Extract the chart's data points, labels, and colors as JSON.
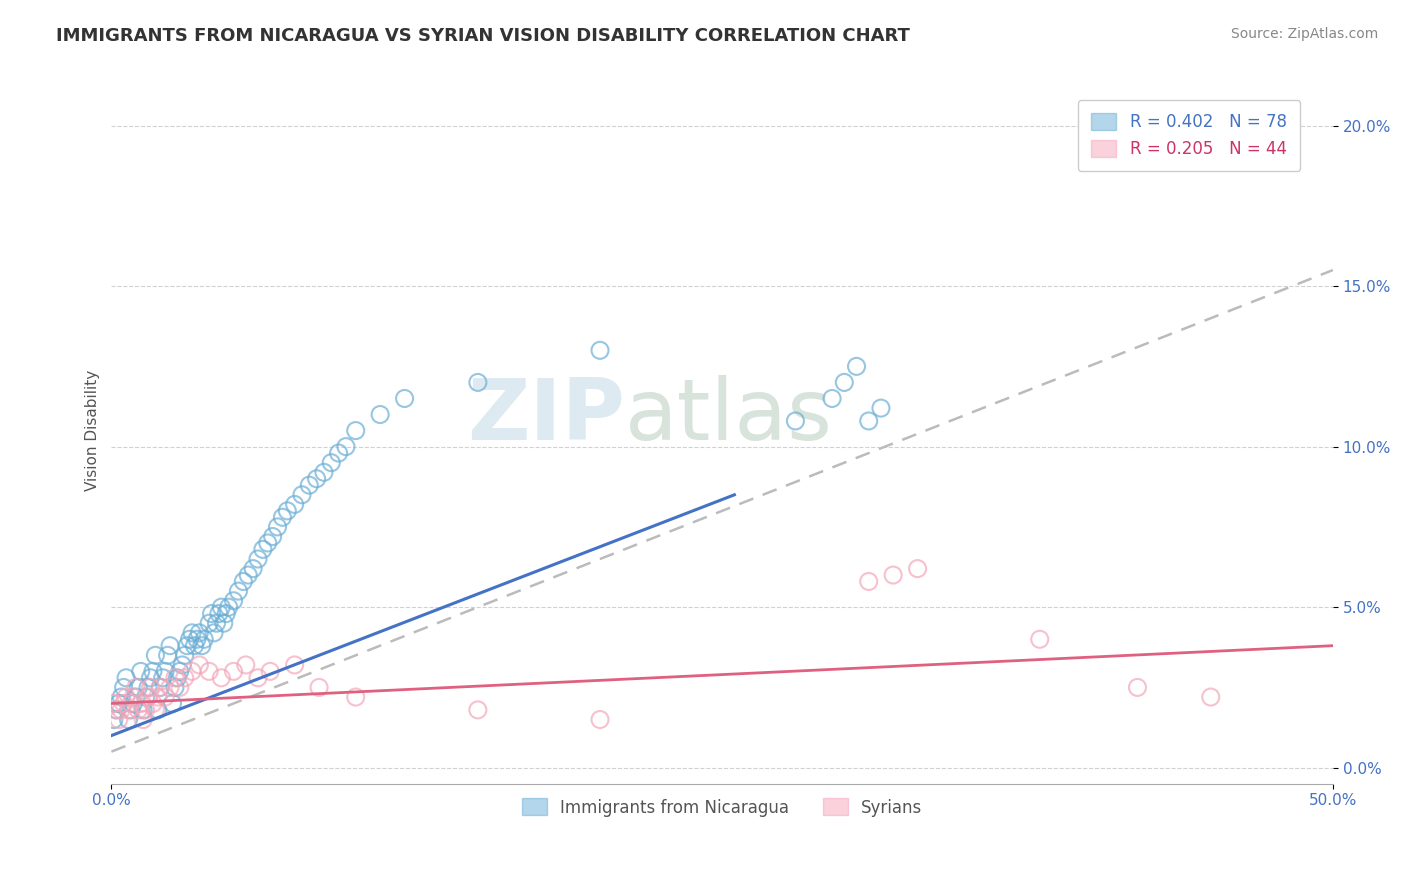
{
  "title": "IMMIGRANTS FROM NICARAGUA VS SYRIAN VISION DISABILITY CORRELATION CHART",
  "source": "Source: ZipAtlas.com",
  "ylabel": "Vision Disability",
  "series1_label": "Immigrants from Nicaragua",
  "series2_label": "Syrians",
  "series1_color": "#6baed6",
  "series2_color": "#f4a6b8",
  "series1_R": "0.402",
  "series1_N": "78",
  "series2_R": "0.205",
  "series2_N": "44",
  "watermark_zip": "ZIP",
  "watermark_atlas": "atlas",
  "background_color": "#ffffff",
  "xlim": [
    0.0,
    0.5
  ],
  "ylim": [
    -0.005,
    0.215
  ],
  "series1_x": [
    0.001,
    0.002,
    0.003,
    0.004,
    0.005,
    0.006,
    0.007,
    0.008,
    0.009,
    0.01,
    0.011,
    0.012,
    0.013,
    0.014,
    0.015,
    0.016,
    0.017,
    0.018,
    0.019,
    0.02,
    0.021,
    0.022,
    0.023,
    0.024,
    0.025,
    0.026,
    0.027,
    0.028,
    0.029,
    0.03,
    0.031,
    0.032,
    0.033,
    0.034,
    0.035,
    0.036,
    0.037,
    0.038,
    0.04,
    0.041,
    0.042,
    0.043,
    0.044,
    0.045,
    0.046,
    0.047,
    0.048,
    0.05,
    0.052,
    0.054,
    0.056,
    0.058,
    0.06,
    0.062,
    0.064,
    0.066,
    0.068,
    0.07,
    0.072,
    0.075,
    0.078,
    0.081,
    0.084,
    0.087,
    0.09,
    0.093,
    0.096,
    0.1,
    0.11,
    0.12,
    0.15,
    0.2,
    0.28,
    0.295,
    0.3,
    0.305,
    0.31,
    0.315
  ],
  "series1_y": [
    0.015,
    0.018,
    0.02,
    0.022,
    0.025,
    0.028,
    0.015,
    0.018,
    0.02,
    0.022,
    0.025,
    0.03,
    0.018,
    0.022,
    0.025,
    0.028,
    0.03,
    0.035,
    0.018,
    0.025,
    0.028,
    0.03,
    0.035,
    0.038,
    0.02,
    0.025,
    0.028,
    0.03,
    0.032,
    0.035,
    0.038,
    0.04,
    0.042,
    0.038,
    0.04,
    0.042,
    0.038,
    0.04,
    0.045,
    0.048,
    0.042,
    0.045,
    0.048,
    0.05,
    0.045,
    0.048,
    0.05,
    0.052,
    0.055,
    0.058,
    0.06,
    0.062,
    0.065,
    0.068,
    0.07,
    0.072,
    0.075,
    0.078,
    0.08,
    0.082,
    0.085,
    0.088,
    0.09,
    0.092,
    0.095,
    0.098,
    0.1,
    0.105,
    0.11,
    0.115,
    0.12,
    0.13,
    0.108,
    0.115,
    0.12,
    0.125,
    0.108,
    0.112
  ],
  "series2_x": [
    0.001,
    0.002,
    0.003,
    0.004,
    0.005,
    0.006,
    0.007,
    0.008,
    0.009,
    0.01,
    0.011,
    0.012,
    0.013,
    0.014,
    0.015,
    0.016,
    0.017,
    0.018,
    0.019,
    0.02,
    0.022,
    0.024,
    0.026,
    0.028,
    0.03,
    0.033,
    0.036,
    0.04,
    0.045,
    0.05,
    0.055,
    0.06,
    0.065,
    0.075,
    0.085,
    0.1,
    0.15,
    0.2,
    0.31,
    0.32,
    0.33,
    0.38,
    0.42,
    0.45
  ],
  "series2_y": [
    0.02,
    0.018,
    0.015,
    0.018,
    0.02,
    0.022,
    0.018,
    0.02,
    0.022,
    0.025,
    0.018,
    0.02,
    0.015,
    0.018,
    0.022,
    0.025,
    0.02,
    0.018,
    0.022,
    0.025,
    0.022,
    0.025,
    0.028,
    0.025,
    0.028,
    0.03,
    0.032,
    0.03,
    0.028,
    0.03,
    0.032,
    0.028,
    0.03,
    0.032,
    0.025,
    0.022,
    0.018,
    0.015,
    0.058,
    0.06,
    0.062,
    0.04,
    0.025,
    0.022
  ],
  "grid_color": "#cccccc",
  "trend1_color": "#4472c4",
  "trend2_color": "#bbbbbb",
  "trend3_color": "#e06080",
  "title_fontsize": 13,
  "axis_label_fontsize": 11,
  "tick_fontsize": 11,
  "legend_fontsize": 12,
  "source_fontsize": 10
}
